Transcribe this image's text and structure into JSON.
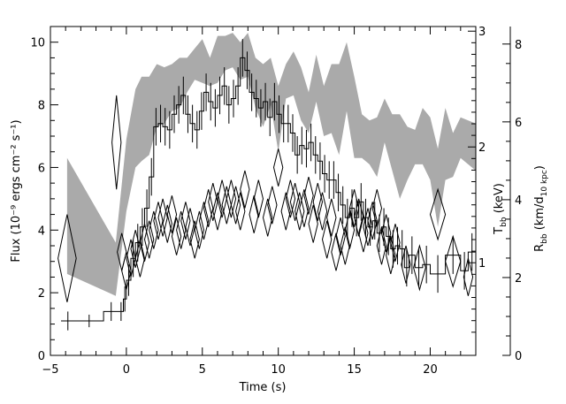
{
  "chart_data": {
    "type": "line",
    "title": "",
    "xlabel": "Time (s)",
    "ylabel": "Flux (10⁻⁹ ergs cm⁻² s⁻¹)",
    "right_label_1": "Tₕₕ (keV)",
    "right_label_2": "Rₕₕ (km/d₁₀ ₖₚₑ)",
    "right_label_1_main": "T",
    "right_label_1_sub": "bb",
    "right_label_1_unit": " (keV)",
    "right_label_2_main": "R",
    "right_label_2_sub": "bb",
    "right_label_2_unit_a": " (km/d",
    "right_label_2_unit_sub": "10 kpc",
    "right_label_2_unit_b": ")",
    "xlim": [
      -5,
      23
    ],
    "ylim": [
      0,
      10.5
    ],
    "grid": false,
    "x_ticks": [
      "−5",
      "0",
      "5",
      "10",
      "15",
      "20"
    ],
    "y_ticks": [
      "0",
      "2",
      "4",
      "6",
      "8",
      "10"
    ],
    "t_ticks": [
      "1",
      "2",
      "3"
    ],
    "r_ticks": [
      "0",
      "2",
      "4",
      "6",
      "8"
    ],
    "series": [
      {
        "kind": "flux-histogram",
        "values": [
          [
            -4.3,
            -3.4,
            1.1,
            0.3
          ],
          [
            -3.4,
            -1.5,
            1.1,
            0.2
          ],
          [
            -1.5,
            -0.5,
            1.4,
            0.3
          ],
          [
            -0.5,
            -0.2,
            1.4,
            0.3
          ],
          [
            -0.2,
            0.0,
            1.8,
            0.4
          ],
          [
            0.0,
            0.3,
            2.4,
            0.5
          ],
          [
            0.3,
            0.6,
            3.1,
            0.6
          ],
          [
            0.6,
            0.9,
            3.6,
            0.6
          ],
          [
            0.9,
            1.2,
            4.1,
            0.6
          ],
          [
            1.2,
            1.5,
            4.7,
            0.6
          ],
          [
            1.5,
            1.8,
            5.7,
            0.6
          ],
          [
            1.8,
            2.1,
            7.3,
            0.6
          ],
          [
            2.1,
            2.4,
            7.4,
            0.6
          ],
          [
            2.4,
            2.7,
            7.3,
            0.6
          ],
          [
            2.7,
            3.0,
            7.2,
            0.6
          ],
          [
            3.0,
            3.3,
            7.7,
            0.6
          ],
          [
            3.3,
            3.6,
            8.0,
            0.6
          ],
          [
            3.6,
            3.9,
            8.3,
            0.6
          ],
          [
            3.9,
            4.2,
            7.7,
            0.6
          ],
          [
            4.2,
            4.5,
            7.4,
            0.6
          ],
          [
            4.5,
            4.8,
            7.2,
            0.6
          ],
          [
            4.8,
            5.1,
            7.8,
            0.6
          ],
          [
            5.1,
            5.4,
            8.4,
            0.6
          ],
          [
            5.4,
            5.7,
            8.1,
            0.6
          ],
          [
            5.7,
            6.0,
            7.9,
            0.6
          ],
          [
            6.0,
            6.3,
            8.3,
            0.6
          ],
          [
            6.3,
            6.6,
            8.6,
            0.6
          ],
          [
            6.6,
            6.9,
            8.0,
            0.6
          ],
          [
            6.9,
            7.2,
            8.2,
            0.6
          ],
          [
            7.2,
            7.5,
            8.6,
            0.6
          ],
          [
            7.5,
            7.8,
            9.5,
            0.6
          ],
          [
            7.8,
            8.1,
            9.1,
            0.6
          ],
          [
            8.1,
            8.4,
            8.4,
            0.6
          ],
          [
            8.4,
            8.7,
            8.2,
            0.6
          ],
          [
            8.7,
            9.0,
            7.9,
            0.6
          ],
          [
            9.0,
            9.3,
            8.1,
            0.6
          ],
          [
            9.3,
            9.6,
            7.6,
            0.6
          ],
          [
            9.6,
            9.9,
            8.1,
            0.6
          ],
          [
            9.9,
            10.2,
            7.7,
            0.6
          ],
          [
            10.2,
            10.5,
            7.4,
            0.6
          ],
          [
            10.5,
            10.8,
            7.4,
            0.6
          ],
          [
            10.8,
            11.1,
            7.1,
            0.6
          ],
          [
            11.1,
            11.4,
            6.4,
            0.6
          ],
          [
            11.4,
            11.7,
            6.7,
            0.6
          ],
          [
            11.7,
            12.0,
            6.6,
            0.6
          ],
          [
            12.0,
            12.3,
            6.8,
            0.6
          ],
          [
            12.3,
            12.6,
            6.4,
            0.6
          ],
          [
            12.6,
            12.9,
            6.2,
            0.6
          ],
          [
            12.9,
            13.2,
            5.8,
            0.6
          ],
          [
            13.2,
            13.5,
            5.6,
            0.6
          ],
          [
            13.5,
            13.8,
            5.6,
            0.6
          ],
          [
            13.8,
            14.1,
            5.2,
            0.6
          ],
          [
            14.1,
            14.4,
            4.8,
            0.6
          ],
          [
            14.4,
            14.7,
            4.4,
            0.6
          ],
          [
            14.7,
            15.0,
            4.7,
            0.6
          ],
          [
            15.0,
            15.3,
            4.4,
            0.6
          ],
          [
            15.3,
            15.6,
            4.9,
            0.6
          ],
          [
            15.6,
            15.9,
            4.4,
            0.6
          ],
          [
            15.9,
            16.2,
            4.1,
            0.6
          ],
          [
            16.2,
            16.5,
            4.3,
            0.6
          ],
          [
            16.5,
            16.8,
            3.9,
            0.6
          ],
          [
            16.8,
            17.1,
            4.1,
            0.6
          ],
          [
            17.1,
            17.4,
            3.8,
            0.6
          ],
          [
            17.4,
            17.7,
            3.4,
            0.6
          ],
          [
            17.7,
            18.0,
            3.5,
            0.6
          ],
          [
            18.0,
            18.3,
            3.4,
            0.6
          ],
          [
            18.3,
            18.6,
            2.8,
            0.6
          ],
          [
            18.6,
            19.0,
            3.2,
            0.6
          ],
          [
            19.0,
            19.5,
            2.8,
            0.6
          ],
          [
            19.5,
            20.0,
            2.9,
            0.6
          ],
          [
            20.0,
            21.0,
            2.6,
            0.6
          ],
          [
            21.0,
            22.0,
            3.2,
            0.6
          ],
          [
            22.0,
            22.5,
            2.7,
            0.6
          ],
          [
            22.5,
            23.0,
            3.3,
            0.6
          ]
        ]
      },
      {
        "kind": "temperature-diamonds",
        "values": [
          [
            -3.9,
            3.1,
            0.6,
            1.4
          ],
          [
            -0.65,
            6.8,
            0.3,
            1.5
          ],
          [
            -0.3,
            3.3,
            0.3,
            0.6
          ],
          [
            0.0,
            2.7,
            0.3,
            0.6
          ],
          [
            0.3,
            3.1,
            0.3,
            0.6
          ],
          [
            0.6,
            3.4,
            0.3,
            0.6
          ],
          [
            0.9,
            3.1,
            0.3,
            0.6
          ],
          [
            1.2,
            3.6,
            0.3,
            0.6
          ],
          [
            1.5,
            3.7,
            0.3,
            0.6
          ],
          [
            1.8,
            4.0,
            0.3,
            0.6
          ],
          [
            2.1,
            4.3,
            0.3,
            0.6
          ],
          [
            2.4,
            4.4,
            0.3,
            0.6
          ],
          [
            2.7,
            4.2,
            0.3,
            0.6
          ],
          [
            3.0,
            4.5,
            0.3,
            0.6
          ],
          [
            3.3,
            3.8,
            0.3,
            0.6
          ],
          [
            3.6,
            4.0,
            0.3,
            0.6
          ],
          [
            3.9,
            4.3,
            0.3,
            0.6
          ],
          [
            4.2,
            4.1,
            0.3,
            0.6
          ],
          [
            4.5,
            3.7,
            0.3,
            0.6
          ],
          [
            4.8,
            4.0,
            0.3,
            0.6
          ],
          [
            5.1,
            4.3,
            0.3,
            0.6
          ],
          [
            5.4,
            4.7,
            0.3,
            0.6
          ],
          [
            5.7,
            4.9,
            0.3,
            0.6
          ],
          [
            6.0,
            4.6,
            0.3,
            0.6
          ],
          [
            6.3,
            5.0,
            0.3,
            0.6
          ],
          [
            6.6,
            4.8,
            0.3,
            0.6
          ],
          [
            6.9,
            5.0,
            0.3,
            0.6
          ],
          [
            7.2,
            4.8,
            0.3,
            0.6
          ],
          [
            7.5,
            4.6,
            0.3,
            0.6
          ],
          [
            7.8,
            5.3,
            0.3,
            0.6
          ],
          [
            8.4,
            4.5,
            0.3,
            0.6
          ],
          [
            8.7,
            5.0,
            0.3,
            0.6
          ],
          [
            9.3,
            4.4,
            0.3,
            0.6
          ],
          [
            9.6,
            4.8,
            0.3,
            0.6
          ],
          [
            10.0,
            6.0,
            0.3,
            0.6
          ],
          [
            10.5,
            4.6,
            0.3,
            0.6
          ],
          [
            10.8,
            5.0,
            0.3,
            0.6
          ],
          [
            11.1,
            4.9,
            0.3,
            0.6
          ],
          [
            11.4,
            4.6,
            0.3,
            0.6
          ],
          [
            11.7,
            4.7,
            0.3,
            0.6
          ],
          [
            12.0,
            5.1,
            0.3,
            0.6
          ],
          [
            12.3,
            4.2,
            0.3,
            0.6
          ],
          [
            12.6,
            4.9,
            0.3,
            0.6
          ],
          [
            12.9,
            4.6,
            0.3,
            0.6
          ],
          [
            13.2,
            3.7,
            0.3,
            0.6
          ],
          [
            13.5,
            4.4,
            0.3,
            0.6
          ],
          [
            13.8,
            3.3,
            0.3,
            0.6
          ],
          [
            14.1,
            3.8,
            0.3,
            0.6
          ],
          [
            14.4,
            3.5,
            0.3,
            0.6
          ],
          [
            14.7,
            4.0,
            0.3,
            0.6
          ],
          [
            15.0,
            4.7,
            0.3,
            0.6
          ],
          [
            15.3,
            4.4,
            0.3,
            0.6
          ],
          [
            15.6,
            3.9,
            0.3,
            0.6
          ],
          [
            15.9,
            4.1,
            0.3,
            0.6
          ],
          [
            16.2,
            4.3,
            0.3,
            0.6
          ],
          [
            16.5,
            4.7,
            0.3,
            0.6
          ],
          [
            16.8,
            3.5,
            0.3,
            0.6
          ],
          [
            17.1,
            3.9,
            0.3,
            0.6
          ],
          [
            17.4,
            3.2,
            0.3,
            0.6
          ],
          [
            17.7,
            3.6,
            0.3,
            0.6
          ],
          [
            18.4,
            2.9,
            0.3,
            0.6
          ],
          [
            19.3,
            2.8,
            0.4,
            0.7
          ],
          [
            20.5,
            4.5,
            0.5,
            0.8
          ],
          [
            21.5,
            3.0,
            0.5,
            0.8
          ],
          [
            22.5,
            2.5,
            0.3,
            0.6
          ]
        ]
      },
      {
        "kind": "radius-band",
        "x": [
          -3.9,
          -0.7,
          0.0,
          0.6,
          1.0,
          1.5,
          2.0,
          2.5,
          3.0,
          3.5,
          4.0,
          4.5,
          5.0,
          5.5,
          6.0,
          6.5,
          7.0,
          7.5,
          8.0,
          8.5,
          9.0,
          9.5,
          10.0,
          10.5,
          11.0,
          11.5,
          12.0,
          12.5,
          13.0,
          13.5,
          14.0,
          14.5,
          15.0,
          15.5,
          16.0,
          16.5,
          17.0,
          17.5,
          18.0,
          18.5,
          19.0,
          19.5,
          20.0,
          20.5,
          21.0,
          21.5,
          22.0,
          23.0
        ],
        "upper": [
          6.3,
          3.6,
          6.9,
          8.5,
          8.9,
          8.9,
          9.3,
          9.2,
          9.3,
          9.5,
          9.5,
          9.8,
          10.1,
          9.5,
          10.2,
          10.2,
          10.3,
          10.0,
          10.3,
          9.5,
          9.3,
          9.5,
          8.6,
          9.3,
          9.7,
          9.2,
          8.4,
          9.6,
          8.6,
          9.3,
          9.3,
          10.0,
          8.9,
          7.7,
          7.5,
          7.6,
          8.2,
          7.7,
          7.7,
          7.3,
          7.2,
          7.9,
          7.6,
          6.6,
          7.9,
          7.1,
          7.6,
          7.4
        ],
        "lower": [
          2.6,
          1.9,
          4.6,
          6.0,
          6.2,
          6.4,
          7.3,
          7.4,
          7.8,
          7.9,
          8.4,
          8.8,
          8.7,
          8.6,
          8.7,
          9.1,
          9.2,
          8.8,
          8.9,
          7.9,
          7.3,
          8.0,
          6.5,
          8.2,
          8.3,
          7.5,
          7.1,
          8.1,
          7.0,
          7.1,
          6.4,
          7.8,
          6.3,
          6.3,
          6.1,
          5.7,
          6.8,
          5.9,
          5.0,
          5.6,
          6.1,
          6.1,
          5.6,
          4.1,
          5.6,
          5.7,
          6.3,
          5.9
        ]
      }
    ]
  }
}
